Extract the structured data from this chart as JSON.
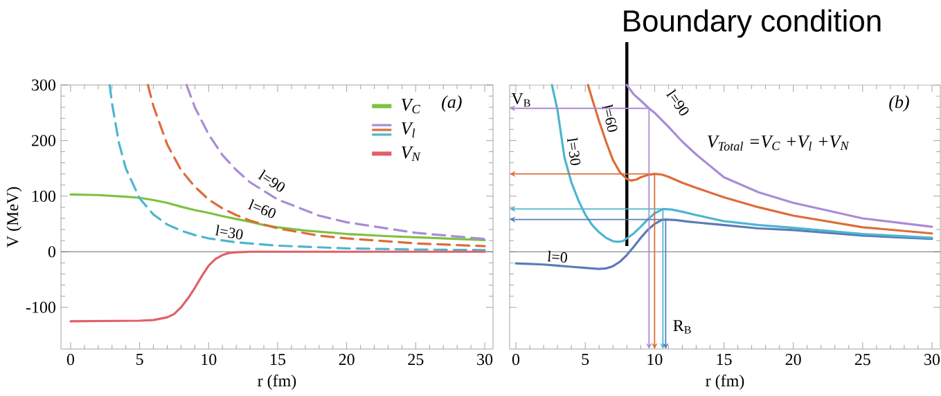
{
  "chart_data": [
    {
      "type": "line",
      "xlabel": "r (fm)",
      "ylabel": "V (MeV)",
      "xlim": [
        -0.7,
        30.6
      ],
      "ylim": [
        -175,
        300
      ],
      "xticks": [
        0,
        5,
        10,
        15,
        20,
        25,
        30
      ],
      "yticks": [
        -100,
        0,
        100,
        200,
        300
      ],
      "legend": "top right",
      "annotations": [
        "(a)",
        "V$_{l}$"
      ],
      "ref_lines": [
        {
          "axis": "y",
          "value": 0,
          "color": "#666666"
        }
      ],
      "series": [
        {
          "name": "V$_{C}$",
          "color": "#7cc242",
          "x": [
            0,
            2,
            4,
            5,
            6,
            7,
            8,
            9,
            10,
            11,
            12,
            13,
            14,
            15,
            17,
            20,
            23,
            26,
            30
          ],
          "values": [
            103,
            102,
            99,
            97,
            93,
            88,
            81,
            75,
            70,
            64,
            59,
            54,
            48,
            44,
            38,
            32,
            28,
            25,
            21
          ]
        },
        {
          "name": "l=90",
          "color": "#a98bd6",
          "line_style": "dashed",
          "x": [
            8.4,
            9,
            10,
            11,
            12,
            13,
            15,
            18,
            20,
            25,
            30
          ],
          "values": [
            300,
            260,
            211,
            174,
            147,
            125,
            94,
            65,
            53,
            34,
            23
          ]
        },
        {
          "name": "l=60",
          "color": "#dd6c3a",
          "line_style": "dashed",
          "x": [
            5.6,
            6,
            7,
            8,
            9,
            10,
            11,
            12,
            13,
            15,
            18,
            20,
            25,
            30
          ],
          "values": [
            300,
            262,
            193,
            147,
            117,
            94,
            78,
            66,
            56,
            42,
            29,
            24,
            15,
            10
          ]
        },
        {
          "name": "l=30",
          "color": "#4db5cf",
          "line_style": "dashed",
          "x": [
            2.83,
            3,
            3.5,
            4,
            5,
            6,
            7,
            8,
            9,
            10,
            12,
            15,
            20,
            25,
            30
          ],
          "values": [
            300,
            267,
            196,
            150,
            96,
            67,
            49,
            38,
            30,
            24,
            17,
            11,
            6,
            4,
            3
          ]
        },
        {
          "name": "V$_{N}$",
          "color": "#e0606a",
          "x": [
            0,
            5,
            6,
            7,
            7.5,
            8,
            8.5,
            9,
            9.5,
            10,
            10.5,
            11,
            11.5,
            12,
            13,
            30
          ],
          "values": [
            -125,
            -124,
            -123,
            -118,
            -112,
            -100,
            -84,
            -65,
            -44,
            -25,
            -13,
            -6,
            -2,
            -1,
            0,
            0
          ]
        }
      ]
    },
    {
      "type": "line",
      "xlabel": "r (fm)",
      "xlim": [
        -0.45,
        30.6
      ],
      "ylim": [
        -175,
        300
      ],
      "xticks": [
        0,
        5,
        10,
        15,
        20,
        25,
        30
      ],
      "yticks": [
        -100,
        0,
        100,
        200,
        300
      ],
      "tick_labels": "x",
      "annotations": [
        "(b)",
        "V$_{Total}$ =V$_{C}$ +V$_{l}$ +V$_{N}$"
      ],
      "ref_lines": [
        {
          "axis": "x",
          "value": 8,
          "label": "Boundary condition",
          "color": "#000000"
        },
        {
          "axis": "y",
          "value": 0,
          "color": "#666666"
        },
        {
          "axis": "y",
          "value": 258,
          "color": "#a98bd6",
          "label": "V$_{B}$"
        },
        {
          "axis": "x",
          "value": 9.6,
          "color": "#a98bd6"
        },
        {
          "axis": "y",
          "value": 140,
          "color": "#dd6c3a"
        },
        {
          "axis": "x",
          "value": 10,
          "color": "#dd6c3a"
        },
        {
          "axis": "y",
          "value": 77,
          "color": "#4db5cf"
        },
        {
          "axis": "x",
          "value": 10.6,
          "color": "#4db5cf"
        },
        {
          "axis": "y",
          "value": 58,
          "color": "#5b7bb8"
        },
        {
          "axis": "x",
          "value": 10.8,
          "color": "#5b7bb8",
          "label": "R$_{B}$"
        }
      ],
      "series": [
        {
          "name": "l=0",
          "color": "#5b7bb8",
          "x": [
            0,
            1,
            2,
            3,
            4,
            5,
            6,
            6.5,
            7,
            7.5,
            8,
            8.5,
            9,
            9.5,
            10,
            10.5,
            10.8,
            11.5,
            12.5,
            15,
            17.5,
            20,
            22.5,
            25,
            27.5,
            30
          ],
          "values": [
            -21,
            -22,
            -23,
            -25,
            -27,
            -29,
            -31,
            -30,
            -26,
            -18,
            -6,
            9,
            25,
            39,
            50,
            57,
            58,
            57,
            54,
            48,
            42,
            39,
            34,
            29,
            26,
            23
          ]
        },
        {
          "name": "l=30",
          "color": "#4db5cf",
          "x": [
            2.6,
            3,
            3.5,
            4,
            4.5,
            5,
            5.5,
            6,
            6.5,
            7,
            7.3,
            7.7,
            8,
            8.5,
            9,
            9.5,
            10,
            10.6,
            11.2,
            12,
            13,
            15,
            17.5,
            20,
            25,
            30
          ],
          "values": [
            300,
            255,
            170,
            125,
            93,
            67,
            48,
            35,
            25,
            19,
            18,
            19,
            24,
            33,
            45,
            58,
            69,
            77,
            76,
            72,
            66,
            55,
            48,
            43,
            32,
            25
          ]
        },
        {
          "name": "l=60",
          "color": "#dd6c3a",
          "x": [
            5.2,
            5.5,
            6,
            6.5,
            7,
            7.5,
            8,
            8.3,
            8.7,
            9,
            9.5,
            10,
            10.5,
            11,
            12,
            13,
            15,
            17.5,
            20,
            25,
            30
          ],
          "values": [
            300,
            275,
            235,
            198,
            165,
            143,
            131,
            128,
            130,
            134,
            138,
            140,
            139,
            135,
            124,
            115,
            98,
            80,
            65,
            44,
            33
          ]
        },
        {
          "name": "l=90",
          "color": "#a98bd6",
          "x": [
            8,
            8.5,
            9,
            9.6,
            10,
            11,
            12,
            13,
            15,
            17.5,
            20,
            25,
            30
          ],
          "values": [
            300,
            283,
            272,
            258,
            250,
            225,
            198,
            175,
            134,
            107,
            88,
            60,
            45
          ]
        }
      ]
    }
  ]
}
